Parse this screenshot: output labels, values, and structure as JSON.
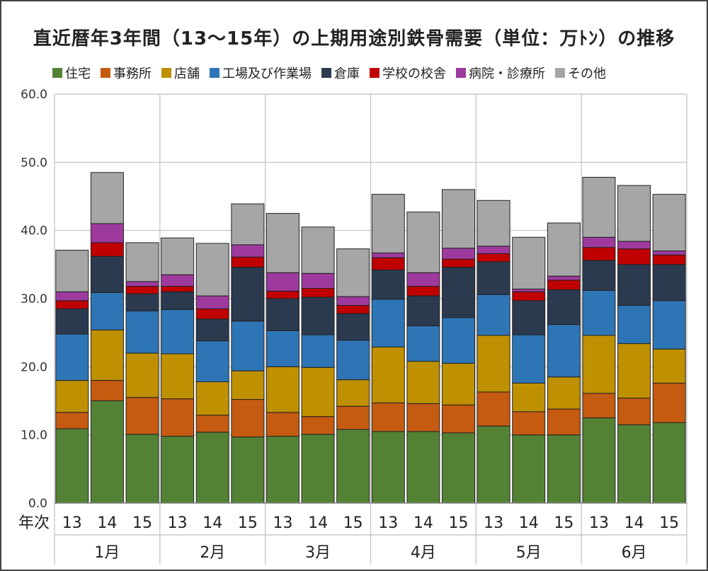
{
  "chart_data": {
    "type": "bar",
    "stacked": true,
    "title": "直近暦年3年間（13～15年）の上期用途別鉄骨需要（単位：万ﾄﾝ）の推移",
    "xlabel": "年次",
    "ylim": [
      0,
      60
    ],
    "yticks": [
      "0.0",
      "10.0",
      "20.0",
      "30.0",
      "40.0",
      "50.0",
      "60.0"
    ],
    "grid": true,
    "legend_position": "top",
    "months": [
      "1月",
      "2月",
      "3月",
      "4月",
      "5月",
      "6月"
    ],
    "years": [
      "13",
      "14",
      "15"
    ],
    "categories": [
      "1月-13",
      "1月-14",
      "1月-15",
      "2月-13",
      "2月-14",
      "2月-15",
      "3月-13",
      "3月-14",
      "3月-15",
      "4月-13",
      "4月-14",
      "4月-15",
      "5月-13",
      "5月-14",
      "5月-15",
      "6月-13",
      "6月-14",
      "6月-15"
    ],
    "series": [
      {
        "name": "住宅",
        "color": "#548235",
        "values": [
          10.9,
          15.0,
          10.1,
          9.8,
          10.4,
          9.7,
          9.8,
          10.1,
          10.8,
          10.5,
          10.5,
          10.3,
          11.3,
          10.0,
          10.0,
          12.5,
          11.5,
          11.8
        ]
      },
      {
        "name": "事務所",
        "color": "#C55A11",
        "values": [
          2.4,
          3.0,
          5.4,
          5.5,
          2.5,
          5.5,
          3.5,
          2.6,
          3.4,
          4.2,
          4.1,
          4.1,
          5.0,
          3.4,
          3.8,
          3.6,
          3.9,
          5.8
        ]
      },
      {
        "name": "店舗",
        "color": "#BF9000",
        "values": [
          4.7,
          7.4,
          6.5,
          6.6,
          4.9,
          4.2,
          6.7,
          7.2,
          3.9,
          8.2,
          6.2,
          6.1,
          8.3,
          4.2,
          4.7,
          8.5,
          8.0,
          5.0
        ]
      },
      {
        "name": "工場及び作業場",
        "color": "#2E75B6",
        "values": [
          6.8,
          5.5,
          6.2,
          6.5,
          6.0,
          7.3,
          5.3,
          4.8,
          5.8,
          7.0,
          5.2,
          6.7,
          6.0,
          7.1,
          7.7,
          6.6,
          5.6,
          7.1
        ]
      },
      {
        "name": "倉庫",
        "color": "#2B3A4F",
        "values": [
          3.7,
          5.3,
          2.5,
          2.6,
          3.2,
          7.9,
          4.7,
          5.5,
          3.9,
          4.3,
          4.4,
          7.4,
          4.8,
          5.0,
          5.1,
          4.4,
          6.0,
          5.3
        ]
      },
      {
        "name": "学校の校舎",
        "color": "#C00000",
        "values": [
          1.2,
          2.0,
          1.1,
          0.8,
          1.5,
          1.5,
          1.1,
          1.3,
          1.2,
          1.8,
          1.4,
          1.2,
          1.2,
          1.3,
          1.4,
          1.9,
          2.3,
          1.4
        ]
      },
      {
        "name": "病院・診療所",
        "color": "#9E3A9E",
        "values": [
          1.3,
          2.8,
          0.7,
          1.7,
          1.9,
          1.8,
          2.7,
          2.2,
          1.3,
          0.7,
          2.0,
          1.6,
          1.1,
          0.4,
          0.6,
          1.5,
          1.1,
          0.6
        ]
      },
      {
        "name": "その他",
        "color": "#A6A6A6",
        "values": [
          6.1,
          7.5,
          5.7,
          5.4,
          7.7,
          6.0,
          8.7,
          6.8,
          7.0,
          8.6,
          8.9,
          8.6,
          6.7,
          7.6,
          7.8,
          8.8,
          8.2,
          8.3
        ]
      }
    ]
  }
}
